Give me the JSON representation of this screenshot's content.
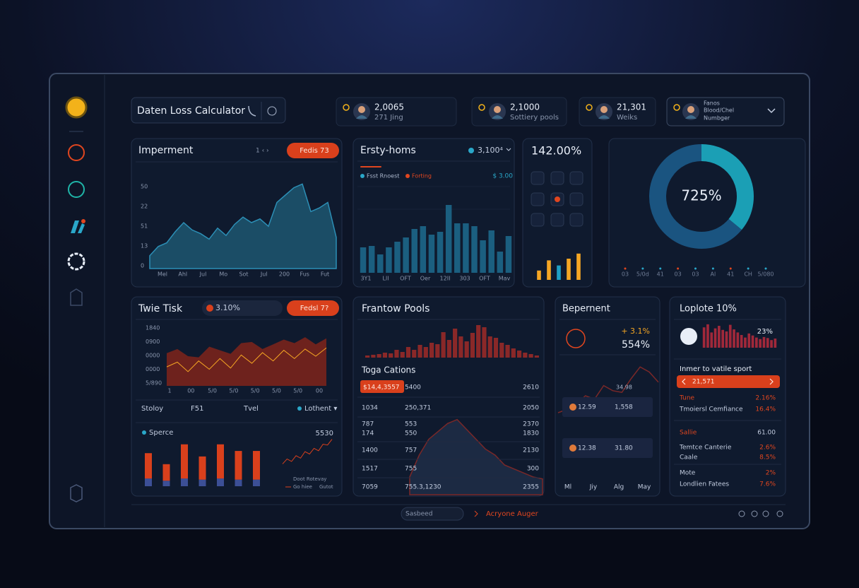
{
  "header": {
    "search": "Daten Loss Calculator",
    "stats": [
      {
        "value": "2,0065",
        "label": "271 Jing"
      },
      {
        "value": "2,1000",
        "label": "Sottiery pools"
      },
      {
        "value": "21,301",
        "label": "Weiks"
      },
      {
        "value": "Fanos",
        "label": "Blood/Chel",
        "note": "Numbger"
      }
    ]
  },
  "impairment": {
    "title": "Imperment",
    "pager": "1 ‹ ›",
    "badge": "Fedis 73",
    "y_labels": [
      "50",
      "22",
      "51",
      "13",
      "0"
    ],
    "x_labels": [
      "Mel",
      "Ahl",
      "Jul",
      "Mo",
      "Sot",
      "Jul",
      "200",
      "Fus",
      "Fut"
    ],
    "ylim": [
      0,
      100
    ],
    "values": [
      14,
      24,
      28,
      40,
      50,
      42,
      38,
      32,
      44,
      36,
      48,
      56,
      50,
      54,
      46,
      72,
      80,
      88,
      92,
      62,
      66,
      72,
      34
    ]
  },
  "ersty": {
    "title": "Ersty-homs",
    "stat": "3,100⁴",
    "legend": [
      "Fsst Rnoest",
      "Forting"
    ],
    "legend_colors": [
      "#2aa7c9",
      "#e0461f"
    ],
    "amount": "$ 3.00",
    "x_labels": [
      "3Y1",
      "Lll",
      "OFT",
      "Oer",
      "12II",
      "303",
      "OFT",
      "Mav"
    ],
    "ylim": [
      0,
      100
    ],
    "values": [
      36,
      38,
      26,
      36,
      44,
      50,
      62,
      66,
      54,
      58,
      96,
      70,
      70,
      66,
      46,
      60,
      30,
      52
    ]
  },
  "percent": {
    "value": "142.00%",
    "ylim": [
      0,
      100
    ],
    "values": [
      22,
      46,
      34,
      50,
      62
    ],
    "colors": [
      "#f5a623",
      "#f5a623",
      "#1f9fc4",
      "#f5a623",
      "#f5a623"
    ]
  },
  "donut": {
    "label": "725%",
    "segments": [
      {
        "value": 36,
        "color": "#1b9fb5"
      },
      {
        "value": 64,
        "color": "#1a5480"
      }
    ],
    "x_labels": [
      "03",
      "5/0d",
      "41",
      "03",
      "03",
      "Al",
      "41",
      "CH",
      "5/080"
    ]
  },
  "twie": {
    "title": "Twie Tisk",
    "pill": "3.10%",
    "badge": "Fedsl 7?",
    "y_labels": [
      "1840",
      "0900",
      "0000",
      "0000",
      "5/890"
    ],
    "x_labels": [
      "1",
      "00",
      "5/0",
      "5/0",
      "5/0",
      "5/0",
      "5/0",
      "00"
    ],
    "ylim": [
      0,
      100
    ],
    "area": [
      55,
      62,
      50,
      48,
      66,
      60,
      54,
      72,
      74,
      62,
      70,
      78,
      72,
      82,
      70,
      80
    ],
    "line": [
      32,
      40,
      24,
      42,
      28,
      46,
      30,
      52,
      38,
      56,
      42,
      60,
      46,
      62,
      50,
      64
    ],
    "columns": [
      "Stoloy",
      "F51",
      "Tvel",
      "Lothent ▾"
    ],
    "sperce": {
      "label": "Sperce",
      "total": "5530",
      "ylim": [
        0,
        100
      ],
      "series": [
        {
          "color": "#3c4f96",
          "values": [
            14,
            10,
            14,
            12,
            14,
            12,
            12
          ]
        },
        {
          "color": "#d9401c",
          "values": [
            46,
            30,
            62,
            42,
            62,
            52,
            52
          ]
        }
      ],
      "trend": [
        20,
        32,
        26,
        40,
        34,
        50,
        44,
        58,
        52,
        68,
        66,
        80
      ],
      "legend": [
        "Doot Rotevay",
        "Go hiee",
        "Gutot"
      ]
    }
  },
  "frantow": {
    "title": "Frantow Pools",
    "ylim": [
      0,
      100
    ],
    "values": [
      6,
      8,
      10,
      14,
      12,
      22,
      16,
      30,
      22,
      36,
      30,
      42,
      38,
      72,
      50,
      82,
      60,
      46,
      70,
      92,
      86,
      60,
      56,
      42,
      36,
      26,
      20,
      14,
      10,
      6
    ],
    "table": {
      "title": "Toga Cations",
      "rows": [
        [
          "$14,4,3557",
          "5400",
          "2610"
        ],
        [
          "1034",
          "250,371",
          "2050"
        ],
        [
          "787",
          "553",
          "2370"
        ],
        [
          "174",
          "550",
          "1830"
        ],
        [
          "1400",
          "757",
          "2130"
        ],
        [
          "1517",
          "755",
          "300"
        ],
        [
          "7059",
          "755.3,1230",
          "2355"
        ]
      ]
    },
    "trend": [
      18,
      40,
      56,
      64,
      72,
      76,
      66,
      56,
      46,
      40,
      30,
      26,
      22,
      18,
      16
    ]
  },
  "bepernent": {
    "title": "Bepernent",
    "change": "+ 3.1%",
    "value": "554%",
    "peak": "34.98",
    "ylim": [
      0,
      100
    ],
    "trend": [
      30,
      34,
      40,
      50,
      46,
      62,
      56,
      54,
      70,
      84,
      78,
      66
    ],
    "rows": [
      {
        "left": "12.59",
        "right": "1,558"
      },
      {
        "left": "12.38",
        "right": "31.80"
      }
    ],
    "x_labels": [
      "Ml",
      "Jiy",
      "Alg",
      "May"
    ]
  },
  "loplote": {
    "title": "Loplote 10%",
    "share": "23%",
    "ylim": [
      0,
      100
    ],
    "values": [
      80,
      92,
      60,
      76,
      86,
      70,
      64,
      90,
      72,
      60,
      50,
      40,
      56,
      48,
      40,
      34,
      42,
      38,
      30,
      36
    ],
    "subtitle": "Inmer to vatile sport",
    "pill": "21,571",
    "rows": [
      {
        "label": "Tune",
        "value": "2.16%",
        "accent": true
      },
      {
        "label": "Tmoiersl Cemfiance",
        "value": "16.4%",
        "accent": false
      },
      {
        "label": "Sallie",
        "value": "61.00",
        "accent": true
      },
      {
        "label": "Temtce Canterie",
        "value": "2.6%",
        "accent": false
      },
      {
        "label": "Caale",
        "value": "8.5%",
        "accent": false
      },
      {
        "label": "Mote",
        "value": "2%",
        "accent": false
      },
      {
        "label": "Londlien Fatees",
        "value": "7.6%",
        "accent": false
      }
    ]
  },
  "footer": {
    "search": "Sasbeed",
    "link": "Acryone Auger"
  }
}
